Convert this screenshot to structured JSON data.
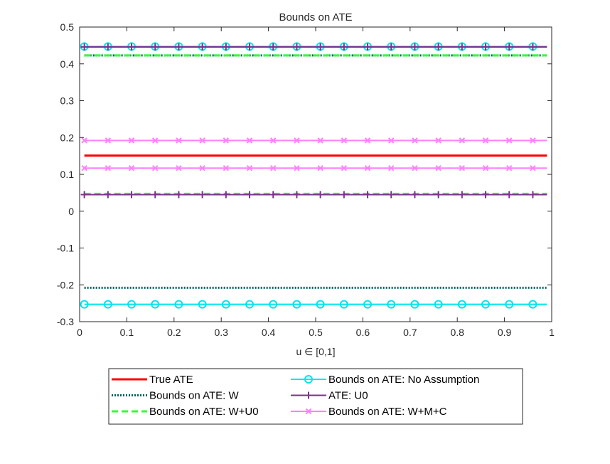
{
  "chart_data": {
    "type": "line",
    "title": "Bounds on ATE",
    "xlabel": "u ∈ [0,1]",
    "ylabel": "",
    "xlim": [
      0,
      1
    ],
    "ylim": [
      -0.3,
      0.5
    ],
    "xticks": [
      0,
      0.1,
      0.2,
      0.3,
      0.4,
      0.5,
      0.6,
      0.7,
      0.8,
      0.9,
      1
    ],
    "xtick_labels": [
      "0",
      "0.1",
      "0.2",
      "0.3",
      "0.4",
      "0.5",
      "0.6",
      "0.7",
      "0.8",
      "0.9",
      "1"
    ],
    "yticks": [
      -0.3,
      -0.2,
      -0.1,
      0,
      0.1,
      0.2,
      0.3,
      0.4,
      0.5
    ],
    "ytick_labels": [
      "-0.3",
      "-0.2",
      "-0.1",
      "0",
      "0.1",
      "0.2",
      "0.3",
      "0.4",
      "0.5"
    ],
    "grid": false,
    "legend_position": "bottom-outside",
    "x_range": [
      0.01,
      0.99
    ],
    "marker_x": [
      0.01,
      0.06,
      0.11,
      0.16,
      0.21,
      0.26,
      0.31,
      0.36,
      0.41,
      0.46,
      0.51,
      0.56,
      0.61,
      0.66,
      0.71,
      0.76,
      0.81,
      0.86,
      0.91,
      0.96
    ],
    "series": [
      {
        "name": "True ATE",
        "color": "#ff0000",
        "style": "solid",
        "width": 3,
        "marker": "none",
        "lines": [
          0.151
        ]
      },
      {
        "name": "Bounds on ATE: W",
        "color": "#006060",
        "style": "dotted",
        "width": 3,
        "marker": "none",
        "lines": [
          -0.208,
          0.423
        ]
      },
      {
        "name": "Bounds on ATE: W+U0",
        "color": "#33ff33",
        "style": "dashed",
        "width": 3,
        "marker": "none",
        "lines": [
          0.047,
          0.423
        ]
      },
      {
        "name": "Bounds on ATE: No Assumption",
        "color": "#00e5ee",
        "style": "solid",
        "width": 2,
        "marker": "circle",
        "lines": [
          -0.253,
          0.447
        ]
      },
      {
        "name": "ATE: U0",
        "color": "#7e2f8e",
        "style": "solid",
        "width": 2,
        "marker": "plus",
        "lines": [
          0.045,
          0.446
        ]
      },
      {
        "name": "Bounds on ATE: W+M+C",
        "color": "#ff80ff",
        "style": "solid",
        "width": 2,
        "marker": "x",
        "lines": [
          0.117,
          0.192
        ]
      }
    ]
  }
}
